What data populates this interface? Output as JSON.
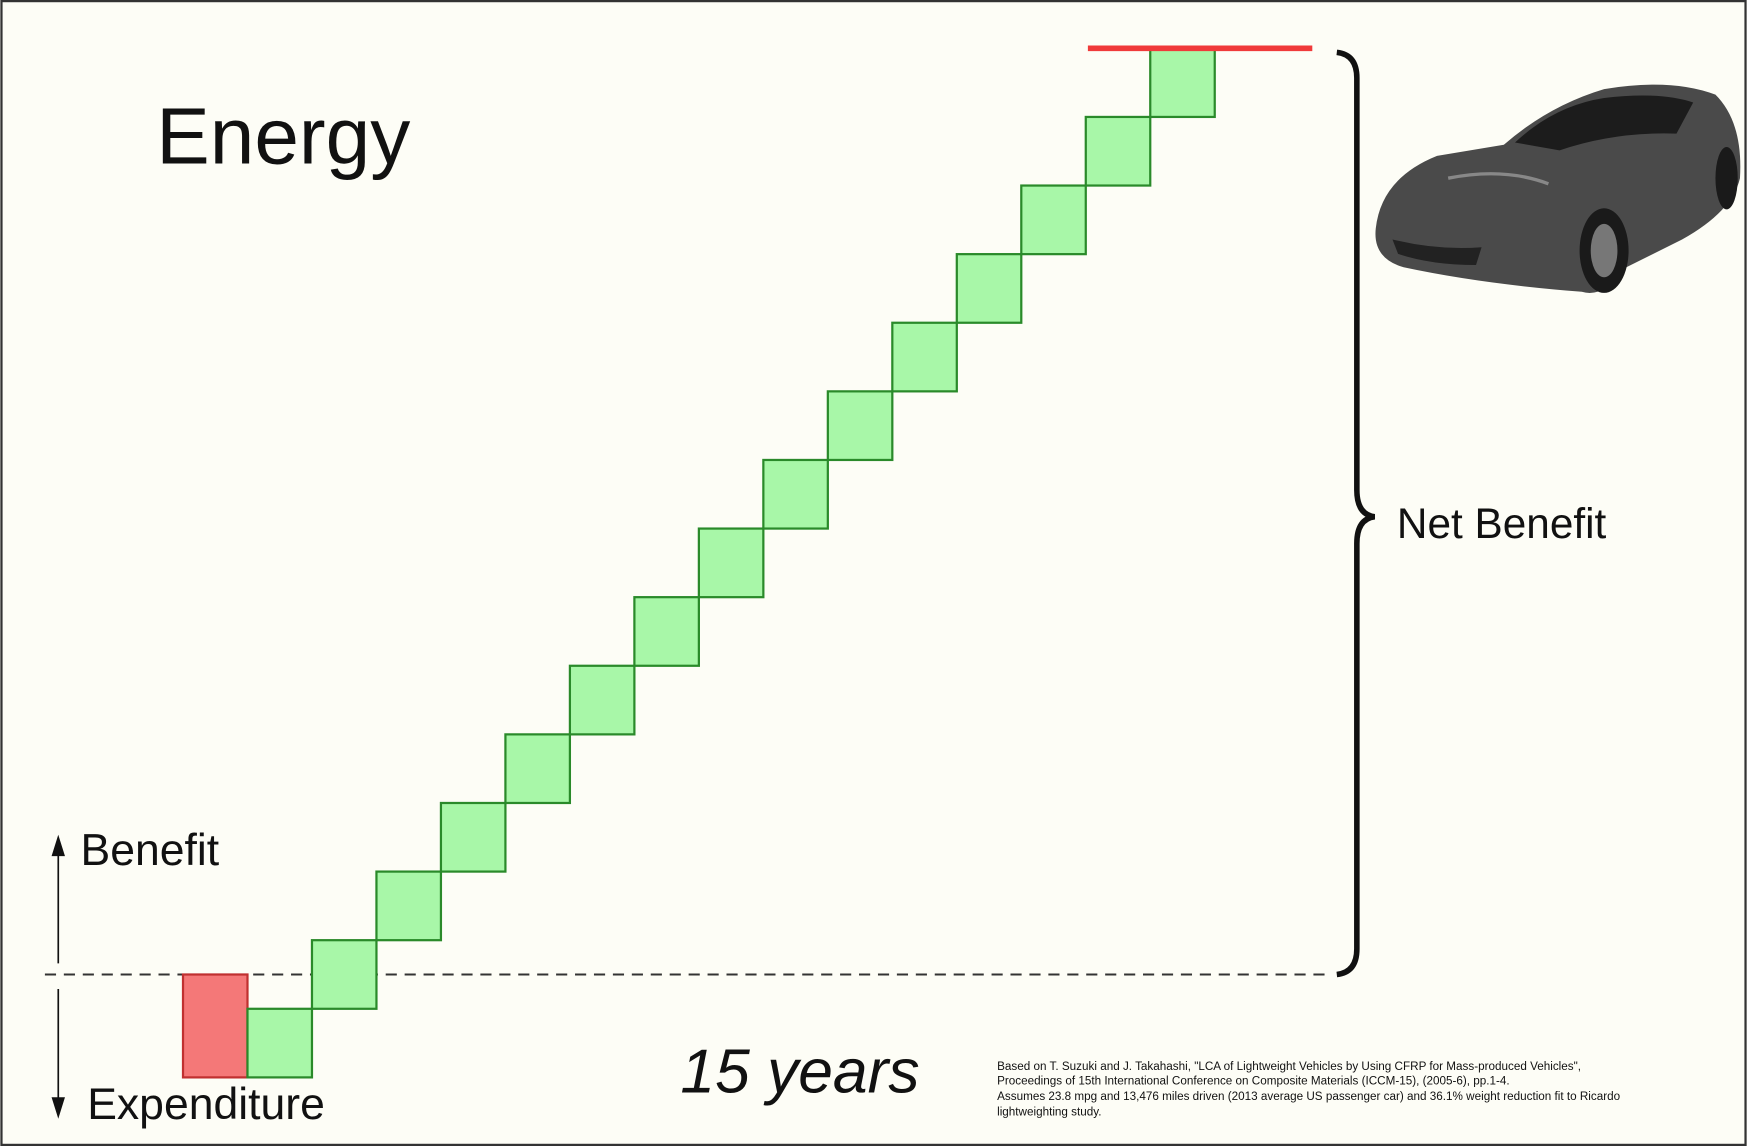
{
  "chart_data": {
    "type": "waterfall",
    "title": "Energy",
    "positive_label": "Benefit",
    "negative_label": "Expenditure",
    "x_label": "15 years",
    "annotation": "Net Benefit",
    "footnote": [
      "Based on T. Suzuki and J. Takahashi, \"LCA of Lightweight Vehicles by Using CFRP for Mass-produced Vehicles\",",
      "Proceedings of 15th International Conference on Composite Materials (ICCM-15), (2005-6), pp.1-4.",
      "Assumes 23.8 mpg and 13,476 miles driven (2013 average US passenger car) and 36.1% weight reduction fit to Ricardo",
      "lightweighting study."
    ],
    "values": [
      -1.5,
      1,
      1,
      1,
      1,
      1,
      1,
      1,
      1,
      1,
      1,
      1,
      1,
      1,
      1,
      1
    ],
    "negative_color": "#f47878",
    "positive_color": "#a8f7a8",
    "total_line_color": "#f03a3a"
  }
}
